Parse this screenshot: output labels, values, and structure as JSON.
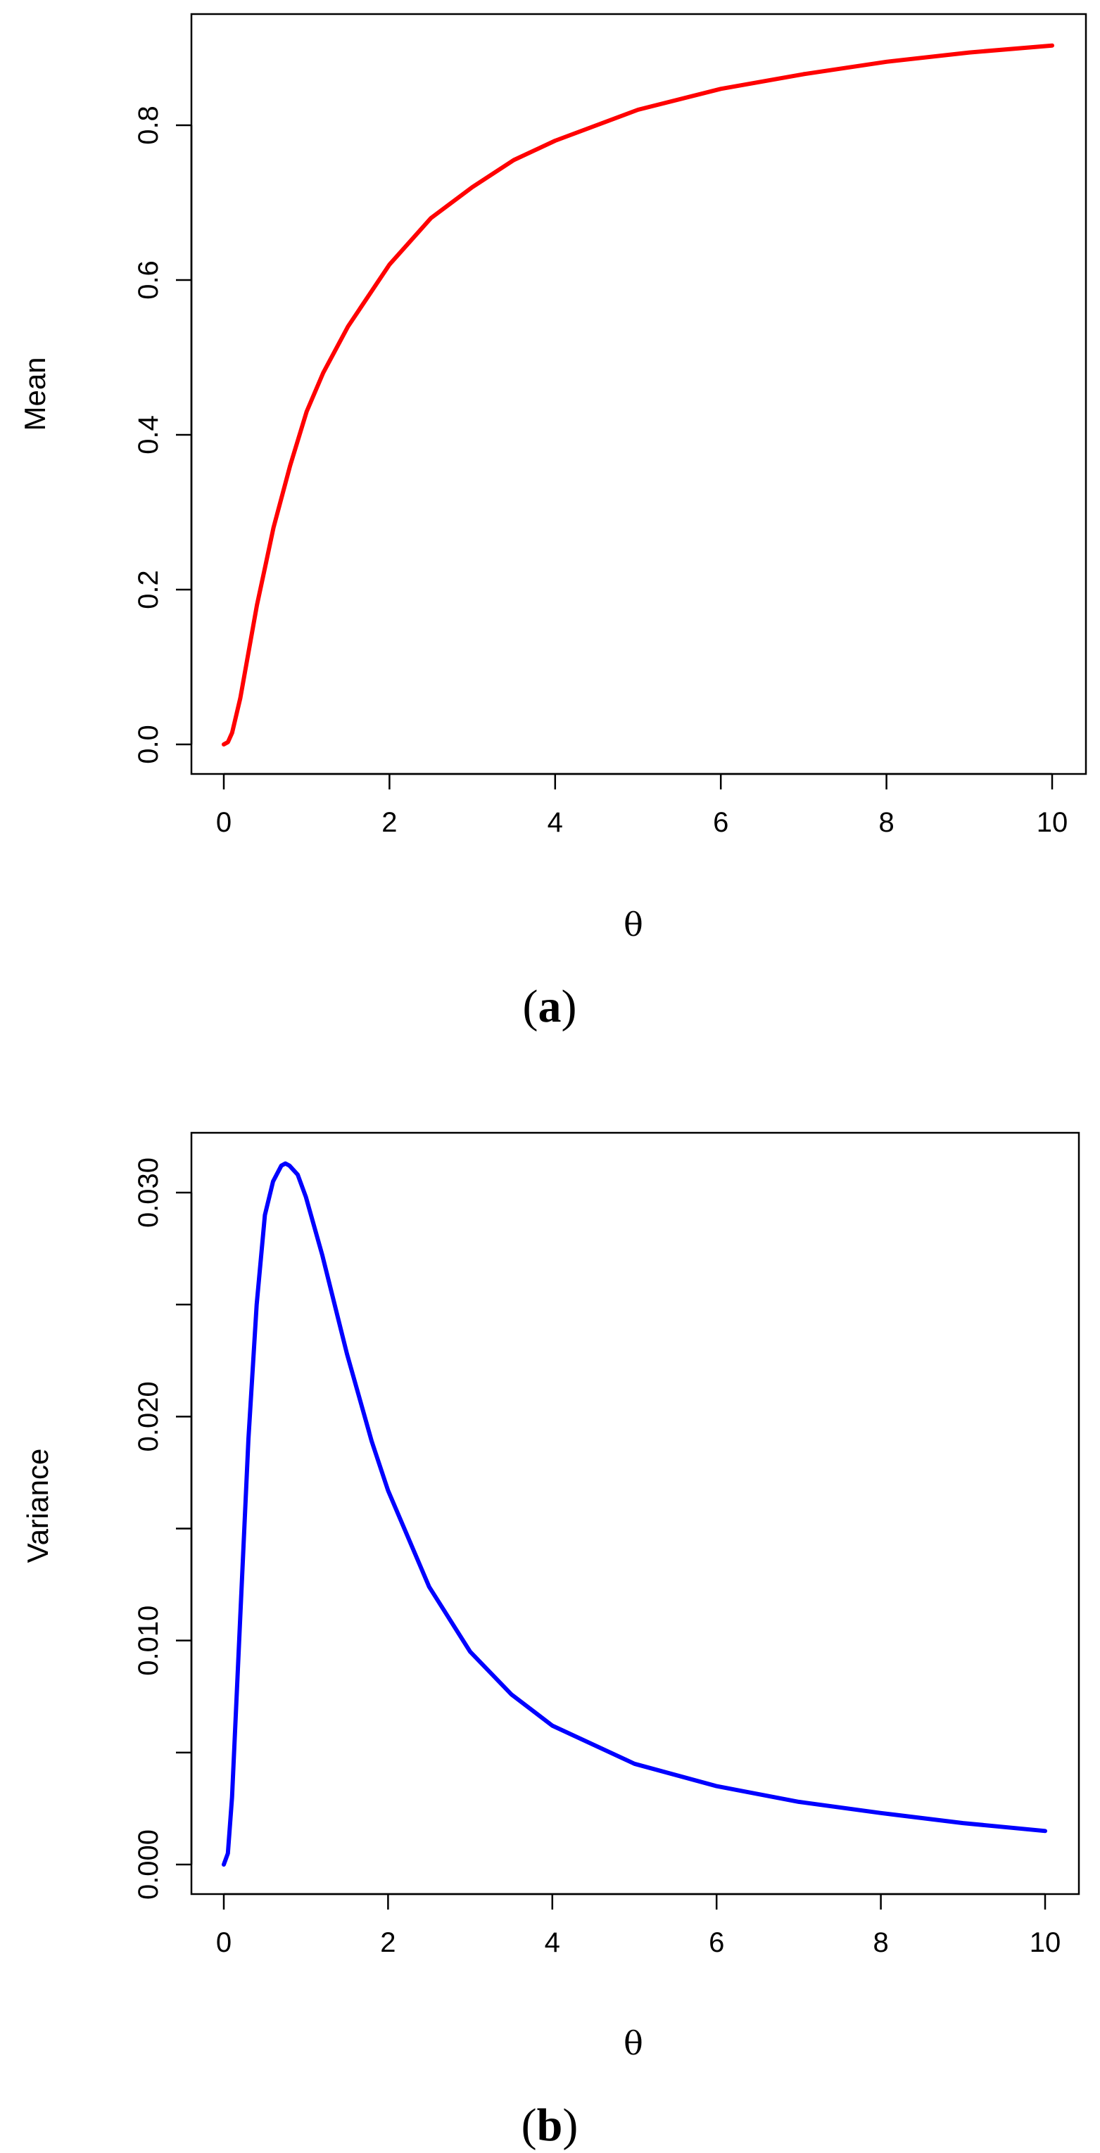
{
  "chart_data": [
    {
      "type": "line",
      "panel_label": "a",
      "xlabel": "θ",
      "ylabel": "Mean",
      "xlim": [
        0,
        10
      ],
      "ylim": [
        0,
        0.9
      ],
      "x_ticks": [
        "0",
        "2",
        "4",
        "6",
        "8",
        "10"
      ],
      "y_ticks": [
        "0.0",
        "0.2",
        "0.4",
        "0.6",
        "0.8"
      ],
      "line_color": "#ff0000",
      "grid": false,
      "series": [
        {
          "x": [
            0,
            0.05,
            0.1,
            0.2,
            0.3,
            0.4,
            0.5,
            0.6,
            0.8,
            1.0,
            1.2,
            1.5,
            2.0,
            2.5,
            3.0,
            3.5,
            4.0,
            5.0,
            6.0,
            7.0,
            8.0,
            9.0,
            10.0
          ],
          "y": [
            0.0,
            0.003,
            0.015,
            0.06,
            0.12,
            0.18,
            0.23,
            0.28,
            0.36,
            0.43,
            0.48,
            0.54,
            0.62,
            0.68,
            0.72,
            0.755,
            0.78,
            0.82,
            0.847,
            0.866,
            0.882,
            0.894,
            0.903
          ]
        }
      ]
    },
    {
      "type": "line",
      "panel_label": "b",
      "xlabel": "θ",
      "ylabel": "Variance",
      "xlim": [
        0,
        10
      ],
      "ylim": [
        0,
        0.031
      ],
      "x_ticks": [
        "0",
        "2",
        "4",
        "6",
        "8",
        "10"
      ],
      "y_ticks": [
        "0.000",
        "0.010",
        "0.020",
        "0.030"
      ],
      "line_color": "#0000ff",
      "grid": false,
      "series": [
        {
          "x": [
            0,
            0.05,
            0.1,
            0.2,
            0.3,
            0.4,
            0.5,
            0.6,
            0.7,
            0.75,
            0.8,
            0.9,
            1.0,
            1.2,
            1.5,
            1.8,
            2.0,
            2.5,
            3.0,
            3.5,
            4.0,
            5.0,
            6.0,
            7.0,
            8.0,
            9.0,
            10.0
          ],
          "y": [
            0.0,
            0.0005,
            0.003,
            0.011,
            0.019,
            0.025,
            0.029,
            0.0305,
            0.0312,
            0.0313,
            0.0312,
            0.0308,
            0.0298,
            0.0272,
            0.0228,
            0.0189,
            0.0167,
            0.0124,
            0.0095,
            0.0076,
            0.0062,
            0.0045,
            0.0035,
            0.0028,
            0.0023,
            0.00185,
            0.0015
          ]
        }
      ]
    }
  ]
}
